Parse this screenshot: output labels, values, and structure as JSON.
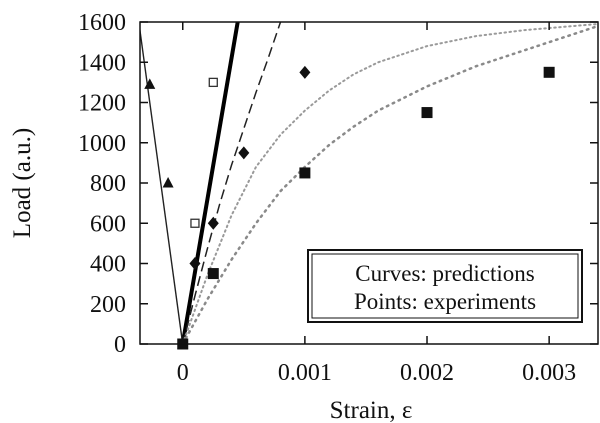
{
  "chart_data": {
    "type": "scatter",
    "xlabel": "Strain, ε",
    "ylabel": "Load (a.u.)",
    "xlim": [
      -0.00035,
      0.0034
    ],
    "ylim": [
      0,
      1600
    ],
    "x_ticks": [
      0,
      0.001,
      0.002,
      0.003
    ],
    "x_tick_labels": [
      "0",
      "0.001",
      "0.002",
      "0.003"
    ],
    "y_ticks": [
      0,
      200,
      400,
      600,
      800,
      1000,
      1200,
      1400,
      1600
    ],
    "y_tick_labels": [
      "0",
      "200",
      "400",
      "600",
      "800",
      "1000",
      "1200",
      "1400",
      "1600"
    ],
    "grid": false,
    "legend_placement": "bottom-right",
    "annotation_lines": [
      "Curves: predictions",
      "Points: experiments"
    ],
    "series": [
      {
        "kind": "curve",
        "style": "thin-solid",
        "x": [
          0,
          -0.00036
        ],
        "y": [
          0,
          1600
        ]
      },
      {
        "kind": "curve",
        "style": "thick-solid",
        "x": [
          0,
          0.00045
        ],
        "y": [
          0,
          1600
        ]
      },
      {
        "kind": "curve",
        "style": "dashed",
        "x": [
          0,
          0.0001,
          0.0002,
          0.0003,
          0.0004,
          0.0005,
          0.0006,
          0.0007,
          0.0008
        ],
        "y": [
          0,
          240,
          470,
          690,
          890,
          1070,
          1250,
          1420,
          1600
        ]
      },
      {
        "kind": "curve",
        "style": "dotted-fine",
        "x": [
          0,
          0.0002,
          0.0004,
          0.0006,
          0.0008,
          0.001,
          0.0012,
          0.0014,
          0.0016,
          0.002,
          0.0024,
          0.0028,
          0.0032,
          0.0034
        ],
        "y": [
          0,
          340,
          640,
          880,
          1040,
          1160,
          1260,
          1340,
          1400,
          1480,
          1530,
          1560,
          1580,
          1590
        ]
      },
      {
        "kind": "curve",
        "style": "dotted",
        "x": [
          0,
          0.0002,
          0.0004,
          0.0006,
          0.0008,
          0.001,
          0.0012,
          0.0014,
          0.0016,
          0.0018,
          0.002,
          0.0024,
          0.0028,
          0.0032,
          0.0034
        ],
        "y": [
          0,
          220,
          420,
          600,
          760,
          880,
          990,
          1080,
          1160,
          1220,
          1280,
          1380,
          1460,
          1540,
          1580
        ]
      },
      {
        "kind": "points",
        "marker": "triangle",
        "x": [
          -0.00012,
          -0.00027,
          0
        ],
        "y": [
          800,
          1290,
          0
        ]
      },
      {
        "kind": "points",
        "marker": "open-square",
        "x": [
          0.00025,
          0.0001
        ],
        "y": [
          1300,
          600
        ]
      },
      {
        "kind": "points",
        "marker": "diamond",
        "x": [
          0.0001,
          0.00025,
          0.0005,
          0.001
        ],
        "y": [
          400,
          600,
          950,
          1350
        ]
      },
      {
        "kind": "points",
        "marker": "filled-square",
        "x": [
          0,
          0.00025,
          0.001,
          0.002,
          0.003
        ],
        "y": [
          0,
          350,
          850,
          1150,
          1350
        ]
      }
    ]
  }
}
